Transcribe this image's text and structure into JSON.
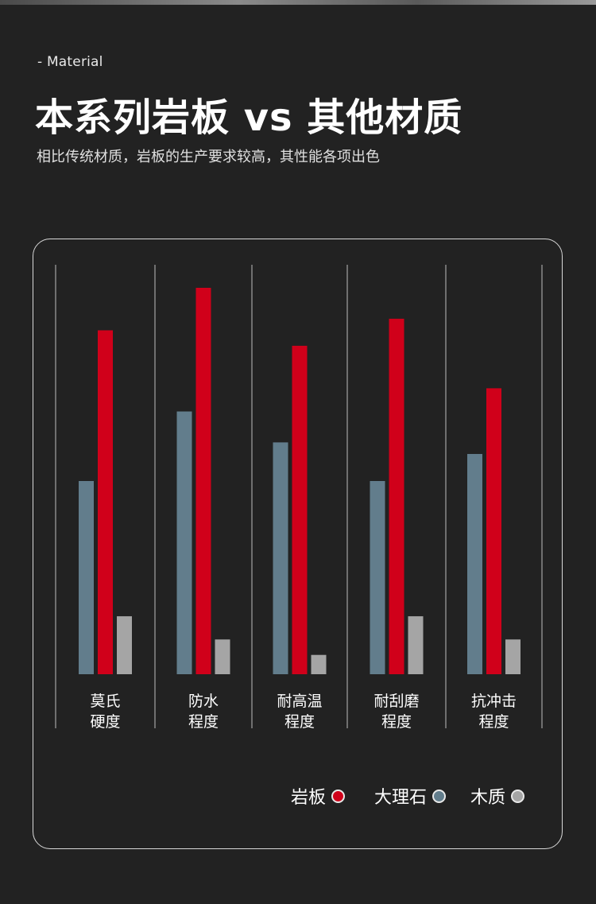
{
  "header": {
    "kicker": "- Material",
    "title": "本系列岩板 vs 其他材质",
    "subtitle": "相比传统材质，岩板的生产要求较高，其性能各项出色"
  },
  "colors": {
    "background": "#222222",
    "stone_slab": "#d0001a",
    "marble": "#627d8c",
    "wood": "#a5a5a5",
    "divider": "#8a8a8a"
  },
  "chart_data": {
    "type": "bar",
    "title": "",
    "xlabel": "",
    "ylabel": "",
    "ylim": [
      0,
      100
    ],
    "grid": false,
    "legend_position": "bottom-right",
    "categories": [
      [
        "莫氏",
        "硬度"
      ],
      [
        "防水",
        "程度"
      ],
      [
        "耐高温",
        "程度"
      ],
      [
        "耐刮磨",
        "程度"
      ],
      [
        "抗冲击",
        "程度"
      ]
    ],
    "series": [
      {
        "name": "大理石",
        "color": "#627d8c",
        "values": [
          50,
          68,
          60,
          50,
          57
        ]
      },
      {
        "name": "岩板",
        "color": "#d0001a",
        "values": [
          89,
          100,
          85,
          92,
          74
        ]
      },
      {
        "name": "木质",
        "color": "#a5a5a5",
        "values": [
          15,
          9,
          5,
          15,
          9
        ]
      }
    ]
  },
  "legend": {
    "items": [
      {
        "label": "岩板",
        "color": "#d0001a"
      },
      {
        "label": "大理石",
        "color": "#627d8c"
      },
      {
        "label": "木质",
        "color": "#a5a5a5"
      }
    ]
  }
}
